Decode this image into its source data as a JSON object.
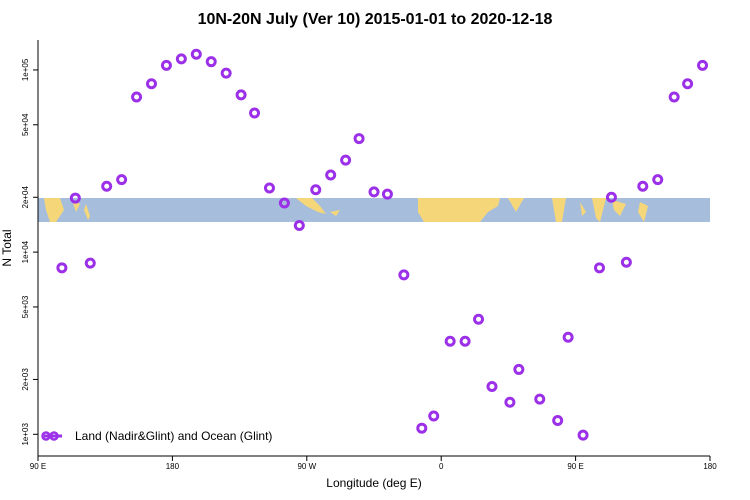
{
  "chart_data": {
    "type": "scatter",
    "title": "10N-20N July (Ver 10)   2015-01-01 to 2020-12-18",
    "x_label": "Longitude (deg E)",
    "y_label": "N Total",
    "x": [
      106,
      115,
      125,
      136,
      146,
      156,
      166,
      176,
      186,
      196,
      206,
      216,
      226,
      235,
      245,
      255,
      265,
      276,
      286,
      296,
      305,
      315,
      324,
      335,
      347,
      355,
      366,
      376,
      385,
      394,
      406,
      412,
      426,
      438,
      445,
      455,
      466,
      474,
      484,
      495,
      505,
      516,
      525,
      535
    ],
    "series": [
      {
        "name": "Land (Nadir&Glint) and Ocean (Glint)",
        "color": "#9b30e8",
        "values": [
          8200,
          19800,
          8700,
          23000,
          25000,
          71000,
          84000,
          106000,
          115000,
          122000,
          111000,
          96000,
          73000,
          58000,
          22500,
          18600,
          14000,
          22000,
          26500,
          32000,
          42000,
          21400,
          20800,
          7500,
          1080,
          1260,
          3240,
          3240,
          4280,
          1830,
          1500,
          2270,
          1560,
          1190,
          3410,
          990,
          8200,
          20000,
          8800,
          23000,
          25000,
          71000,
          84000,
          106000
        ]
      }
    ],
    "xlim": [
      90,
      540
    ],
    "xticks": [
      {
        "value": 90,
        "label": "90 E"
      },
      {
        "value": 180,
        "label": "180"
      },
      {
        "value": 270,
        "label": "90 W"
      },
      {
        "value": 360,
        "label": "0"
      },
      {
        "value": 450,
        "label": "90 E"
      },
      {
        "value": 540,
        "label": "180"
      }
    ],
    "ylim": [
      760,
      146000
    ],
    "log_y": true,
    "yticks": [
      {
        "value": 1000,
        "label": "1e+03"
      },
      {
        "value": 2000,
        "label": "2e+03"
      },
      {
        "value": 5000,
        "label": "5e+03"
      },
      {
        "value": 10000,
        "label": "1e+04"
      },
      {
        "value": 20000,
        "label": "2e+04"
      },
      {
        "value": 50000,
        "label": "5e+04"
      },
      {
        "value": 100000,
        "label": "1e+05"
      }
    ],
    "legend": "bottom-left"
  }
}
